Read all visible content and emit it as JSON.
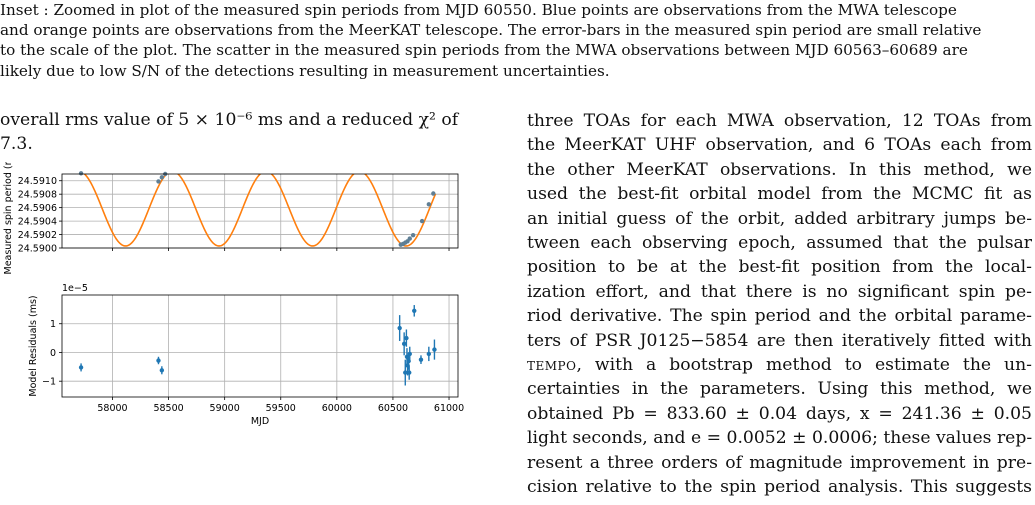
{
  "caption": {
    "lines": [
      "Inset : Zoomed in plot of the measured spin periods from MJD 60550. Blue points are observations from the MWA telescope",
      "and orange points are observations from the MeerKAT telescope. The error-bars in the measured spin period are small relative",
      "to the scale of the plot. The scatter in the measured spin periods from the MWA observations between MJD 60563–60689 are",
      "likely due to low S/N of the detections resulting in measurement uncertainties."
    ]
  },
  "left_text": {
    "lines": [
      "overall rms value of 5 × 10⁻⁶ ms and a reduced χ² of",
      "7.3."
    ]
  },
  "right_text": {
    "lines": [
      "three TOAs for each MWA observation, 12 TOAs from",
      "the MeerKAT UHF observation, and 6 TOAs each from",
      "the other MeerKAT observations. In this method, we",
      "used the best-fit orbital model from the MCMC fit as",
      "an initial guess of the orbit, added arbitrary jumps be-",
      "tween each observing epoch, assumed that the pulsar",
      "position to be at the best-fit position from the local-",
      "ization effort, and that there is no significant spin pe-",
      "riod derivative. The spin period and the orbital parame-",
      "ters of PSR J0125−5854 are then iteratively fitted with",
      "with a bootstrap method to estimate the un-",
      "certainties in the parameters. Using this method, we",
      "obtained Pb = 833.60 ± 0.04 days, x = 241.36 ± 0.05",
      "light seconds, and e = 0.0052 ± 0.0006; these values rep-",
      "resent a three orders of magnitude improvement in pre-",
      "cision relative to the spin period analysis. This suggests"
    ],
    "tempo_word": "tempo"
  },
  "chart_data": [
    {
      "type": "line",
      "ylabel": "Measured spin period (ms)",
      "xlim": [
        57550,
        61080
      ],
      "ylim": [
        24.59,
        24.5911
      ],
      "yticks": [
        "24.5900",
        "24.5902",
        "24.5904",
        "24.5906",
        "24.5908",
        "24.5910"
      ],
      "grid": true,
      "model_curve": {
        "color": "#ff7f0e",
        "period_days": 833.6,
        "p_min": 24.59003,
        "p_max": 24.59114,
        "t_max": 57700
      },
      "points": [
        {
          "x": 57720,
          "y": 24.59111
        },
        {
          "x": 58410,
          "y": 24.59099
        },
        {
          "x": 58440,
          "y": 24.59105
        },
        {
          "x": 58470,
          "y": 24.5911
        },
        {
          "x": 60570,
          "y": 24.59005
        },
        {
          "x": 60590,
          "y": 24.59006
        },
        {
          "x": 60610,
          "y": 24.59008
        },
        {
          "x": 60630,
          "y": 24.5901
        },
        {
          "x": 60650,
          "y": 24.59014
        },
        {
          "x": 60680,
          "y": 24.59019
        },
        {
          "x": 60760,
          "y": 24.5904
        },
        {
          "x": 60820,
          "y": 24.59065
        },
        {
          "x": 60860,
          "y": 24.59081
        }
      ],
      "point_color": "#5f7f95"
    },
    {
      "type": "scatter",
      "xlabel": "MJD",
      "ylabel": "Model Residuals (ms)",
      "offset_text": "1e−5",
      "xlim": [
        57550,
        61080
      ],
      "ylim": [
        -1.55,
        2.0
      ],
      "xticks": [
        "58000",
        "58500",
        "59000",
        "59500",
        "60000",
        "60500",
        "61000"
      ],
      "yticks": [
        "−1",
        "0",
        "1"
      ],
      "grid": true,
      "point_color": "#1f77b4",
      "points": [
        {
          "x": 57720,
          "y": -0.52,
          "err": 0.14
        },
        {
          "x": 58410,
          "y": -0.28,
          "err": 0.13
        },
        {
          "x": 58440,
          "y": -0.62,
          "err": 0.14
        },
        {
          "x": 60560,
          "y": 0.85,
          "err": 0.45
        },
        {
          "x": 60600,
          "y": 0.3,
          "err": 0.4
        },
        {
          "x": 60610,
          "y": -0.7,
          "err": 0.45
        },
        {
          "x": 60620,
          "y": 0.5,
          "err": 0.3
        },
        {
          "x": 60625,
          "y": -0.15,
          "err": 0.3
        },
        {
          "x": 60630,
          "y": -0.45,
          "err": 0.35
        },
        {
          "x": 60640,
          "y": -0.3,
          "err": 0.3
        },
        {
          "x": 60645,
          "y": -0.7,
          "err": 0.25
        },
        {
          "x": 60650,
          "y": -0.05,
          "err": 0.25
        },
        {
          "x": 60690,
          "y": 1.45,
          "err": 0.2
        },
        {
          "x": 60750,
          "y": -0.25,
          "err": 0.15
        },
        {
          "x": 60820,
          "y": -0.05,
          "err": 0.25
        },
        {
          "x": 60870,
          "y": 0.1,
          "err": 0.35
        }
      ]
    }
  ]
}
